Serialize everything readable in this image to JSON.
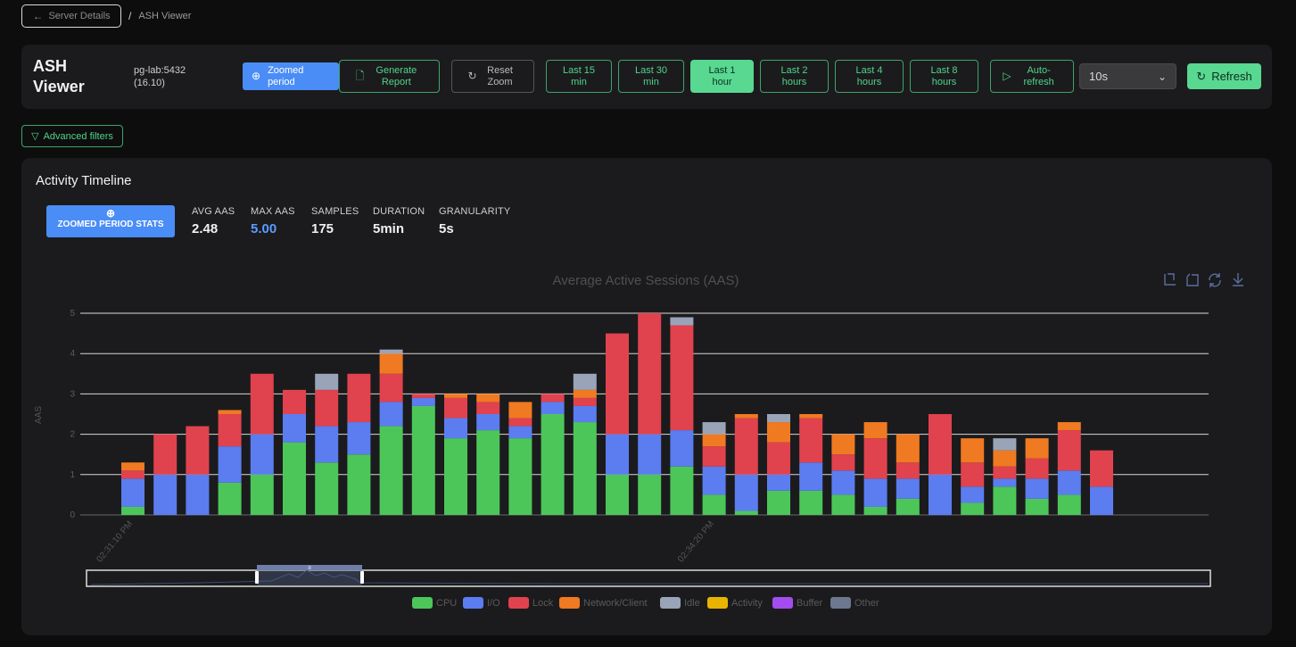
{
  "breadcrumb": {
    "back_label": "Server Details",
    "separator": "/",
    "current": "ASH Viewer"
  },
  "header": {
    "title": "ASH Viewer",
    "server_name": "pg-lab:5432",
    "server_version": "(16.10)",
    "zoomed_label": "Zoomed period",
    "generate_label": "Generate Report",
    "reset_label": "Reset Zoom",
    "ranges": [
      "Last 15 min",
      "Last 30 min",
      "Last 1 hour",
      "Last 2 hours",
      "Last 4 hours",
      "Last 8 hours"
    ],
    "active_range": "Last 1 hour",
    "auto_label": "Auto-refresh",
    "interval_value": "10s",
    "refresh_label": "Refresh"
  },
  "filters": {
    "advanced_label": "Advanced filters"
  },
  "timeline": {
    "title": "Activity Timeline",
    "badge_label": "ZOOMED PERIOD STATS",
    "stats": [
      {
        "label": "AVG AAS",
        "value": "2.48"
      },
      {
        "label": "MAX AAS",
        "value": "5.00"
      },
      {
        "label": "SAMPLES",
        "value": "175"
      },
      {
        "label": "DURATION",
        "value": "5min"
      },
      {
        "label": "GRANULARITY",
        "value": "5s"
      }
    ]
  },
  "chart_data": {
    "type": "bar",
    "stacked": true,
    "title": "Average Active Sessions (AAS)",
    "ylabel": "AAS",
    "ylim": [
      0,
      5
    ],
    "yticks": [
      0,
      1,
      2,
      3,
      4,
      5
    ],
    "x_tick_labels": [
      "02:31:10 PM",
      "02:34:20 PM"
    ],
    "x_tick_index": [
      0,
      18
    ],
    "grid": true,
    "legend_position": "bottom",
    "colors": {
      "CPU": "#4cc659",
      "I/O": "#5b7df0",
      "Lock": "#e0424e",
      "Network/Client": "#ef7a22",
      "Idle": "#9aa4b8",
      "Activity": "#e8b400",
      "Buffer": "#a34df0",
      "Other": "#6c7890"
    },
    "legend": [
      "CPU",
      "I/O",
      "Lock",
      "Network/Client",
      "Idle",
      "Activity",
      "Buffer",
      "Other"
    ],
    "series": [
      {
        "name": "CPU",
        "values": [
          0.2,
          0,
          0,
          0.8,
          1.0,
          1.8,
          1.3,
          1.5,
          2.2,
          2.7,
          1.9,
          2.1,
          1.9,
          2.5,
          2.3,
          1.0,
          1.0,
          1.2,
          0.5,
          0.1,
          0.6,
          0.6,
          0.5,
          0.2,
          0.4,
          0,
          0.3,
          0.7,
          0.4,
          0.5,
          0
        ]
      },
      {
        "name": "I/O",
        "values": [
          0.7,
          1.0,
          1.0,
          0.9,
          1.0,
          0.7,
          0.9,
          0.8,
          0.6,
          0.2,
          0.5,
          0.4,
          0.3,
          0.3,
          0.4,
          1.0,
          1.0,
          0.9,
          0.7,
          0.9,
          0.4,
          0.7,
          0.6,
          0.7,
          0.5,
          1.0,
          0.4,
          0.2,
          0.5,
          0.6,
          0.7
        ]
      },
      {
        "name": "Lock",
        "values": [
          0.2,
          1.0,
          1.2,
          0.8,
          1.5,
          0.6,
          0.9,
          1.2,
          0.7,
          0.1,
          0.5,
          0.3,
          0.2,
          0.2,
          0.2,
          2.5,
          3.0,
          2.6,
          0.5,
          1.4,
          0.8,
          1.1,
          0.4,
          1.0,
          0.4,
          1.5,
          0.6,
          0.3,
          0.5,
          1.0,
          0.9
        ]
      },
      {
        "name": "Network/Client",
        "values": [
          0.2,
          0,
          0,
          0.1,
          0,
          0,
          0,
          0,
          0.5,
          0,
          0.1,
          0.2,
          0.4,
          0,
          0.2,
          0,
          0,
          0,
          0.3,
          0.1,
          0.5,
          0.1,
          0.5,
          0.4,
          0.7,
          0,
          0.6,
          0.4,
          0.5,
          0.2,
          0
        ]
      },
      {
        "name": "Idle",
        "values": [
          0,
          0,
          0,
          0,
          0,
          0,
          0.4,
          0,
          0.1,
          0,
          0,
          0,
          0,
          0,
          0.4,
          0,
          0,
          0.2,
          0.3,
          0,
          0.2,
          0,
          0,
          0,
          0,
          0,
          0,
          0.3,
          0,
          0,
          0
        ]
      }
    ]
  }
}
